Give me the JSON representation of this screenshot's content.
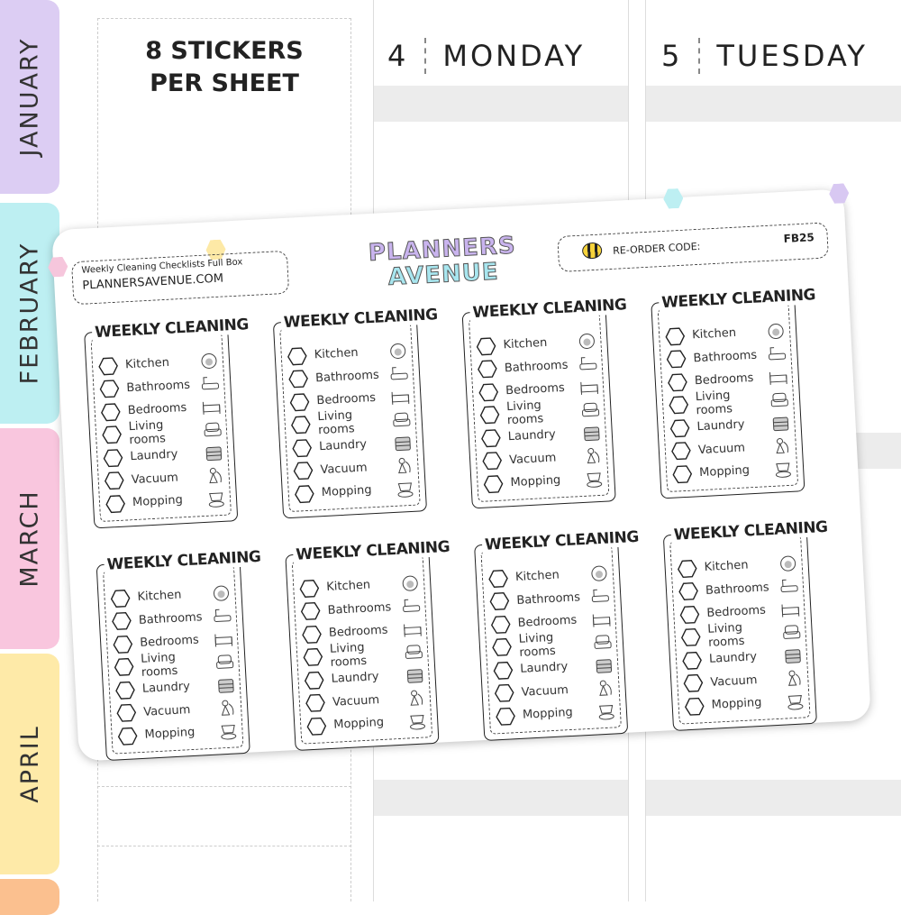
{
  "tabs": [
    {
      "label": "JANUARY",
      "color": "#dccdf3"
    },
    {
      "label": "FEBRUARY",
      "color": "#bdeff2"
    },
    {
      "label": "MARCH",
      "color": "#f9c6de"
    },
    {
      "label": "APRIL",
      "color": "#feeaa8"
    },
    {
      "label": "",
      "color": "#fbc08f"
    }
  ],
  "promo": {
    "line1": "8 STICKERS",
    "line2": "PER SHEET"
  },
  "days": [
    {
      "num": "4",
      "name": "MONDAY"
    },
    {
      "num": "5",
      "name": "TUESDAY"
    }
  ],
  "sheet": {
    "product_name": "Weekly Cleaning Checklists Full Box",
    "website": "PLANNERSAVENUE.COM",
    "logo_line1": "PLANNERS",
    "logo_line2": "AVENUE",
    "reorder_label": "RE-ORDER CODE:",
    "reorder_code": "FB25",
    "sticker_title": "WEEKLY CLEANING",
    "tasks": [
      {
        "label": "Kitchen",
        "icon": "sink-icon"
      },
      {
        "label": "Bathrooms",
        "icon": "bathtub-icon"
      },
      {
        "label": "Bedrooms",
        "icon": "bed-icon"
      },
      {
        "label": "Living rooms",
        "icon": "armchair-icon"
      },
      {
        "label": "Laundry",
        "icon": "laundry-basket-icon"
      },
      {
        "label": "Vacuum",
        "icon": "vacuum-icon"
      },
      {
        "label": "Mopping",
        "icon": "mop-bucket-icon"
      }
    ],
    "sticker_count": 8
  }
}
